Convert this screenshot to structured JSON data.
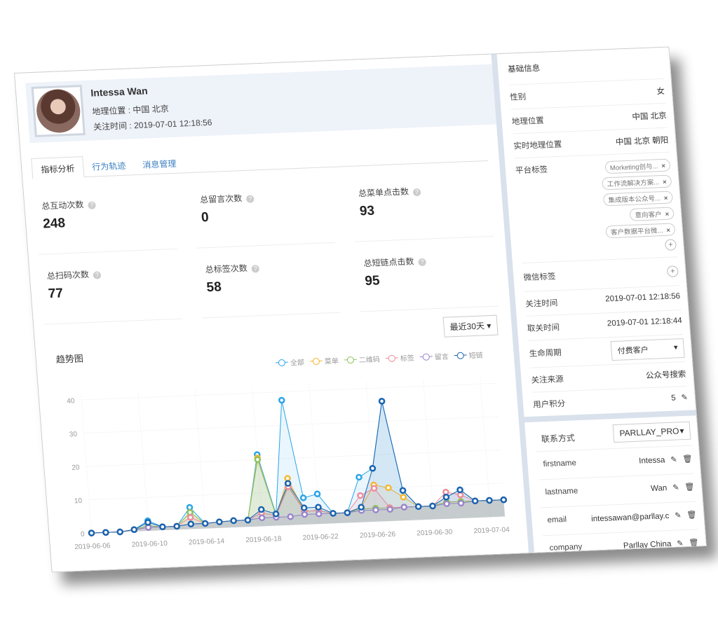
{
  "profile": {
    "name": "Intessa Wan",
    "location_label": "地理位置 : 中国 北京",
    "follow_label": "关注时间 : 2019-07-01 12:18:56"
  },
  "tabs": [
    {
      "label": "指标分析",
      "active": true
    },
    {
      "label": "行为轨迹"
    },
    {
      "label": "消息管理"
    }
  ],
  "metrics": [
    {
      "label": "总互动次数",
      "value": "248"
    },
    {
      "label": "总留言次数",
      "value": "0"
    },
    {
      "label": "总菜单点击数",
      "value": "93"
    },
    {
      "label": "总扫码次数",
      "value": "77"
    },
    {
      "label": "总标签次数",
      "value": "58"
    },
    {
      "label": "总短链点击数",
      "value": "95"
    }
  ],
  "range_select": "最近30天",
  "trend_title": "趋势图",
  "colors": {
    "全部": "#2aa4e8",
    "菜单": "#f5b630",
    "二维码": "#8dc45a",
    "标签": "#f08c9a",
    "留言": "#9a86cc",
    "短链": "#1a64b0"
  },
  "chart_data": {
    "type": "line",
    "x": [
      "2019-06-06",
      "2019-06-07",
      "2019-06-08",
      "2019-06-09",
      "2019-06-10",
      "2019-06-11",
      "2019-06-12",
      "2019-06-13",
      "2019-06-14",
      "2019-06-15",
      "2019-06-16",
      "2019-06-17",
      "2019-06-18",
      "2019-06-19",
      "2019-06-20",
      "2019-06-21",
      "2019-06-22",
      "2019-06-23",
      "2019-06-24",
      "2019-06-25",
      "2019-06-26",
      "2019-06-27",
      "2019-06-28",
      "2019-06-29",
      "2019-06-30",
      "2019-07-01",
      "2019-07-02",
      "2019-07-03",
      "2019-07-04",
      "2019-07-05"
    ],
    "xticks": [
      "2019-06-06",
      "2019-06-10",
      "2019-06-14",
      "2019-06-18",
      "2019-06-22",
      "2019-06-26",
      "2019-06-30",
      "2019-07-04"
    ],
    "yticks": [
      0,
      10,
      20,
      30,
      40
    ],
    "ylim": [
      0,
      42
    ],
    "grid": true,
    "legend": "top-right",
    "series": [
      {
        "name": "全部",
        "values": [
          0,
          0,
          0,
          0.5,
          3,
          1,
          1,
          6.5,
          1.5,
          1.8,
          2,
          2,
          21.5,
          3.5,
          37.5,
          8,
          9,
          3,
          3,
          13.5,
          16,
          36,
          9,
          4,
          4,
          6.5,
          8.5,
          5,
          5,
          5
        ]
      },
      {
        "name": "菜单",
        "values": [
          0,
          0,
          0,
          0.5,
          1.5,
          1,
          1,
          5,
          1.5,
          1.8,
          2,
          2,
          20.5,
          3,
          14,
          4,
          4,
          3,
          3,
          4.5,
          11,
          10,
          7,
          4,
          4,
          5,
          5,
          5,
          5,
          5
        ]
      },
      {
        "name": "二维码",
        "values": [
          0,
          0,
          0,
          0.5,
          1.5,
          1,
          1,
          5,
          1.5,
          1.8,
          2,
          2,
          20,
          3,
          12,
          4,
          4,
          3,
          3,
          4,
          4,
          4,
          4,
          4,
          4,
          5,
          5,
          5,
          5,
          5
        ]
      },
      {
        "name": "标签",
        "values": [
          0,
          0,
          0,
          0.5,
          1,
          1,
          1,
          3.5,
          1.5,
          1.8,
          2,
          2,
          4,
          3,
          11.5,
          4,
          4,
          3,
          3,
          8,
          10,
          4,
          4,
          4,
          4,
          8,
          7,
          5,
          5,
          5
        ]
      },
      {
        "name": "留言",
        "values": [
          0,
          0,
          0,
          0.5,
          1,
          1,
          1,
          1.5,
          1.5,
          1.8,
          2,
          2,
          2.5,
          2.5,
          2.5,
          3,
          3,
          3,
          3,
          3.5,
          3.5,
          3.5,
          4,
          4,
          4,
          4.5,
          4.5,
          5,
          5,
          5
        ]
      },
      {
        "name": "短链",
        "values": [
          0,
          0,
          0,
          0.5,
          2.5,
          1,
          1,
          1.5,
          1.5,
          1.8,
          2,
          2,
          5,
          3.5,
          12.5,
          5,
          5,
          3,
          3,
          4.5,
          16,
          36,
          9,
          4,
          4,
          6.5,
          8.5,
          5,
          5,
          5
        ]
      }
    ]
  },
  "basic": {
    "title": "基础信息",
    "gender": {
      "k": "性别",
      "v": "女"
    },
    "location": {
      "k": "地理位置",
      "v": "中国 北京"
    },
    "realtime_location": {
      "k": "实时地理位置",
      "v": "中国 北京 朝阳"
    },
    "platform_tags": {
      "k": "平台标签",
      "tags": [
        "Morketing创与...",
        "工作流解决方案...",
        "集成版本公众号...",
        "意向客户",
        "客户数据平台微..."
      ]
    },
    "wechat_tags": {
      "k": "微信标签"
    },
    "follow_time": {
      "k": "关注时间",
      "v": "2019-07-01 12:18:56"
    },
    "unfollow_time": {
      "k": "取关时间",
      "v": "2019-07-01 12:18:44"
    },
    "lifecycle": {
      "k": "生命周期",
      "v": "付费客户"
    },
    "source": {
      "k": "关注来源",
      "v": "公众号搜索"
    },
    "points": {
      "k": "用户积分",
      "v": "5"
    }
  },
  "contact": {
    "title": "联系方式",
    "select": "PARLLAY_PRO",
    "rows": [
      {
        "k": "firstname",
        "v": "Intessa"
      },
      {
        "k": "lastname",
        "v": "Wan"
      },
      {
        "k": "email",
        "v": "intessawan@parllay.c"
      },
      {
        "k": "company",
        "v": "Parllay China"
      }
    ]
  }
}
